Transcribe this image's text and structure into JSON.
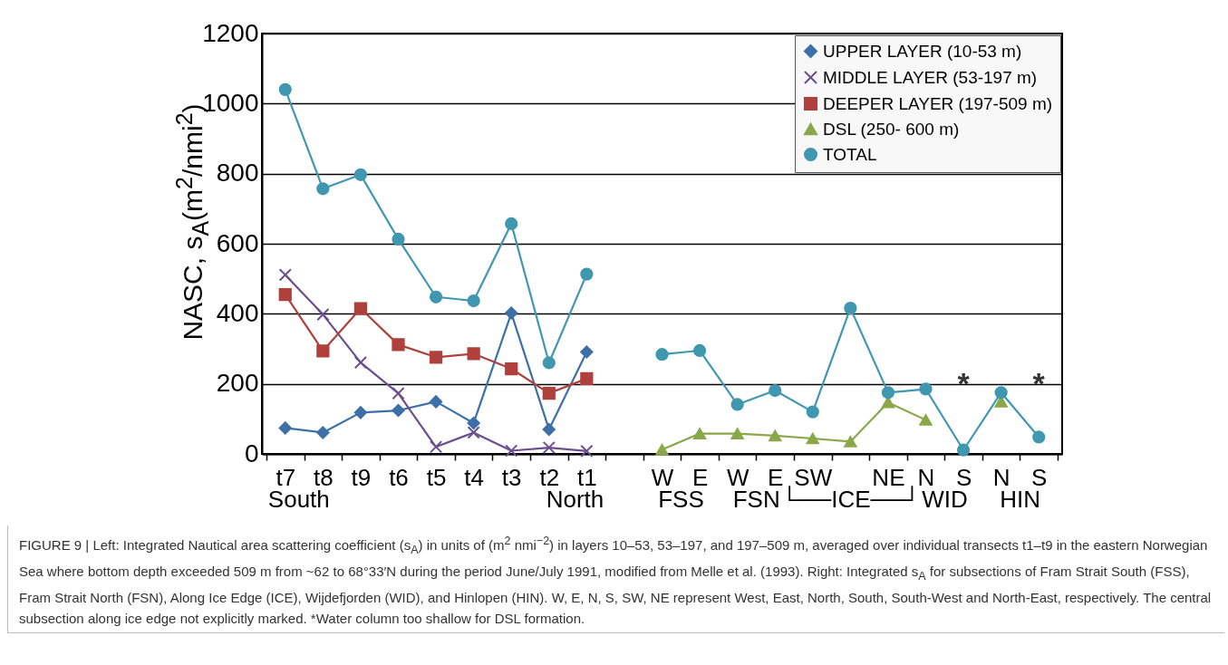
{
  "chart_data": {
    "type": "line",
    "ylabel": "NASC, s$_{A}$(m$^{2}$/nmi$^{2}$)",
    "categories": [
      "t7",
      "t8",
      "t9",
      "t6",
      "t5",
      "t4",
      "t3",
      "t2",
      "t1",
      null,
      "W",
      "E",
      "W",
      "E",
      "SW",
      null,
      "NE",
      "N",
      "S",
      "N",
      "S"
    ],
    "ylim": [
      0,
      1200
    ],
    "yticks": [
      0,
      200,
      400,
      600,
      800,
      1000,
      1200
    ],
    "grid": "y",
    "legend": "top right",
    "series": [
      {
        "name": "UPPER LAYER (10-53 m)",
        "color": "#3d6fa8",
        "marker": "diamond",
        "values": [
          74,
          61,
          118,
          124,
          149,
          88,
          402,
          70,
          291,
          null,
          null,
          null,
          null,
          null,
          null,
          null,
          null,
          null,
          null,
          null,
          null
        ]
      },
      {
        "name": "MIDDLE LAYER (53-197 m)",
        "color": "#6b4e8e",
        "marker": "cross",
        "values": [
          511,
          398,
          261,
          173,
          20,
          61,
          9,
          18,
          8,
          null,
          null,
          null,
          null,
          null,
          null,
          null,
          null,
          null,
          null,
          null,
          null
        ]
      },
      {
        "name": "DEEPER LAYER (197-509 m)",
        "color": "#b0403c",
        "marker": "square",
        "values": [
          455,
          294,
          415,
          312,
          276,
          286,
          243,
          173,
          215,
          null,
          null,
          null,
          null,
          null,
          null,
          null,
          null,
          null,
          null,
          null,
          null
        ]
      },
      {
        "name": "DSL (250- 600 m)",
        "color": "#8aa84a",
        "marker": "triangle",
        "values": [
          null,
          null,
          null,
          null,
          null,
          null,
          null,
          null,
          null,
          null,
          12,
          58,
          58,
          52,
          44,
          35,
          147,
          97,
          null,
          149,
          null
        ]
      },
      {
        "name": "TOTAL",
        "color": "#3f97b0",
        "marker": "circle",
        "values": [
          1040,
          757,
          797,
          613,
          448,
          437,
          657,
          260,
          513,
          null,
          284,
          295,
          141,
          181,
          120,
          416,
          175,
          185,
          11,
          175,
          48
        ]
      }
    ],
    "annotations": [
      "South",
      "North",
      "FSS",
      "FSN",
      "└──ICE──┘",
      "WID",
      "HIN",
      "*",
      "*",
      "FIGURE 9 | Left: Integrated Nautical area scattering coefficient (s$_{A}$) in units of (m$^{2}$ nmi$^{−2}$) in layers 10–53, 53–197, and 197–509 m, averaged over individual transects t1–t9 in the eastern Norwegian Sea where bottom depth exceeded 509 m from ~62 to 68°33′N during the period June/July 1991, modified from Melle et al. (1993). Right: Integrated s$_{A}$ for subsections of Fram Strait South (FSS), Fram Strait North (FSN), Along Ice Edge (ICE), Wijdefjorden (WID), and Hinlopen (HIN). W, E, N, S, SW, NE represent West, East, North, South, South-West and North-East, respectively. The central subsection along ice edge not explicitly marked. *Water column too shallow for DSL formation."
    ]
  }
}
